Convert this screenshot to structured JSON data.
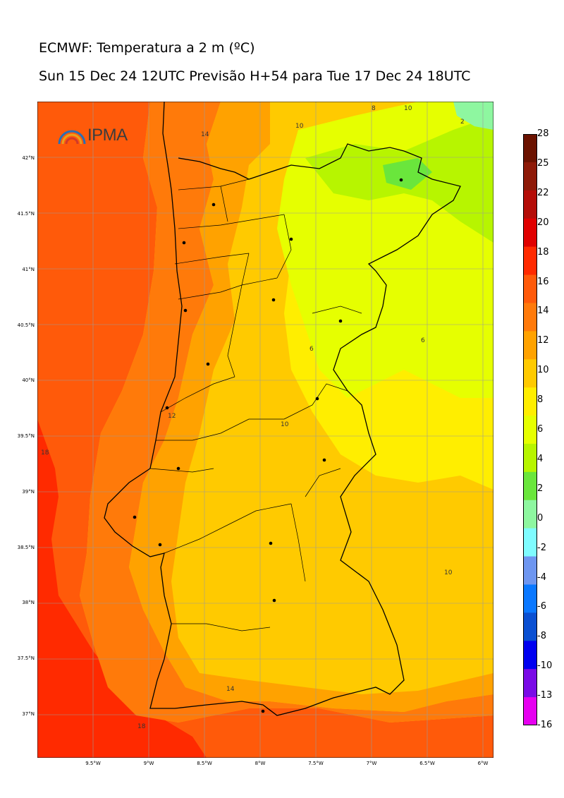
{
  "title": {
    "line1": "ECMWF: Temperatura a 2 m (ºC)",
    "line2": "Sun 15 Dec 24 12UTC Previsão H+54 para Tue 17 Dec 24 18UTC"
  },
  "logo": {
    "text": "IPMA",
    "icon": "rainbow-arc-icon"
  },
  "map": {
    "lat_labels": [
      "42°N",
      "41.5°N",
      "41°N",
      "40.5°N",
      "40°N",
      "39.5°N",
      "39°N",
      "38.5°N",
      "38°N",
      "37.5°N",
      "37°N"
    ],
    "lon_labels": [
      "9.5°W",
      "9°W",
      "8.5°W",
      "8°W",
      "7.5°W",
      "7°W",
      "6.5°W",
      "6°W"
    ],
    "contour_labels": [
      "8",
      "10",
      "14",
      "2",
      "10",
      "6",
      "6",
      "12",
      "18",
      "10",
      "10",
      "14",
      "18"
    ]
  },
  "colorbar": {
    "ticks": [
      "28",
      "25",
      "22",
      "20",
      "18",
      "16",
      "14",
      "12",
      "10",
      "8",
      "6",
      "4",
      "2",
      "0",
      "-2",
      "-4",
      "-6",
      "-8",
      "-10",
      "-13",
      "-16"
    ],
    "colors": [
      "#6b1200",
      "#8e1a08",
      "#b40d08",
      "#e00000",
      "#ff2a00",
      "#ff5a0a",
      "#ff7a0a",
      "#ffa200",
      "#ffca00",
      "#ffee00",
      "#e6ff00",
      "#b7f500",
      "#6ae63c",
      "#8ef7a0",
      "#7ffcff",
      "#6e96f0",
      "#0a78ff",
      "#0a50d2",
      "#0000f0",
      "#7a0ae6",
      "#e600f0"
    ]
  }
}
